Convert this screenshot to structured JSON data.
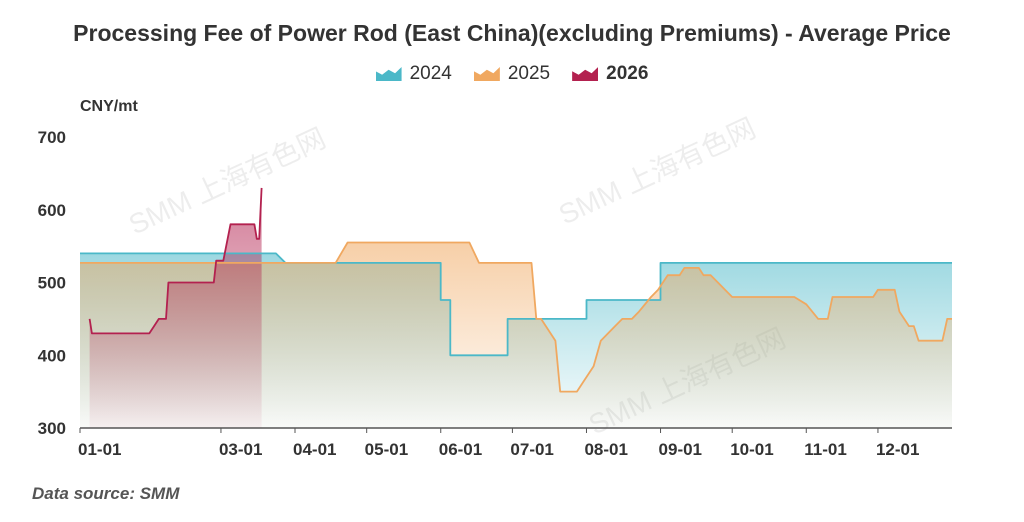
{
  "chart_data": {
    "type": "area",
    "title": "Processing Fee of Power Rod (East China)(excluding Premiums) - Average Price",
    "ylabel": "CNY/mt",
    "ylim": [
      300,
      700
    ],
    "yticks": [
      300,
      400,
      500,
      600,
      700
    ],
    "x_range_day": [
      1,
      366
    ],
    "xticks": [
      {
        "label": "01-01",
        "day": 1
      },
      {
        "label": "03-01",
        "day": 60
      },
      {
        "label": "04-01",
        "day": 91
      },
      {
        "label": "05-01",
        "day": 121
      },
      {
        "label": "06-01",
        "day": 152
      },
      {
        "label": "07-01",
        "day": 182
      },
      {
        "label": "08-01",
        "day": 213
      },
      {
        "label": "09-01",
        "day": 244
      },
      {
        "label": "10-01",
        "day": 274
      },
      {
        "label": "11-01",
        "day": 305
      },
      {
        "label": "12-01",
        "day": 335
      }
    ],
    "legend_position": "top-center",
    "series": [
      {
        "name": "2024",
        "color": "#4bb8c8",
        "points": [
          [
            1,
            540
          ],
          [
            83,
            540
          ],
          [
            87,
            527
          ],
          [
            152,
            527
          ],
          [
            152,
            476
          ],
          [
            156,
            476
          ],
          [
            156,
            400
          ],
          [
            180,
            400
          ],
          [
            180,
            450
          ],
          [
            213,
            450
          ],
          [
            213,
            476
          ],
          [
            244,
            476
          ],
          [
            244,
            527
          ],
          [
            366,
            527
          ]
        ]
      },
      {
        "name": "2025",
        "color": "#f0a860",
        "points": [
          [
            1,
            527
          ],
          [
            108,
            527
          ],
          [
            113,
            555
          ],
          [
            164,
            555
          ],
          [
            168,
            527
          ],
          [
            190,
            527
          ],
          [
            192,
            450
          ],
          [
            194,
            450
          ],
          [
            200,
            420
          ],
          [
            202,
            350
          ],
          [
            209,
            350
          ],
          [
            216,
            385
          ],
          [
            219,
            420
          ],
          [
            222,
            430
          ],
          [
            225,
            440
          ],
          [
            228,
            450
          ],
          [
            232,
            450
          ],
          [
            235,
            460
          ],
          [
            240,
            480
          ],
          [
            243,
            490
          ],
          [
            247,
            510
          ],
          [
            252,
            510
          ],
          [
            254,
            520
          ],
          [
            260,
            520
          ],
          [
            262,
            510
          ],
          [
            265,
            510
          ],
          [
            268,
            500
          ],
          [
            271,
            490
          ],
          [
            274,
            480
          ],
          [
            300,
            480
          ],
          [
            305,
            470
          ],
          [
            310,
            450
          ],
          [
            314,
            450
          ],
          [
            316,
            480
          ],
          [
            333,
            480
          ],
          [
            335,
            490
          ],
          [
            342,
            490
          ],
          [
            344,
            460
          ],
          [
            348,
            440
          ],
          [
            350,
            440
          ],
          [
            352,
            420
          ],
          [
            362,
            420
          ],
          [
            364,
            450
          ],
          [
            366,
            450
          ]
        ]
      },
      {
        "name": "2026",
        "color": "#b3214f",
        "points": [
          [
            5,
            450
          ],
          [
            6,
            430
          ],
          [
            30,
            430
          ],
          [
            32,
            440
          ],
          [
            34,
            450
          ],
          [
            37,
            450
          ],
          [
            38,
            500
          ],
          [
            57,
            500
          ],
          [
            58,
            530
          ],
          [
            61,
            530
          ],
          [
            64,
            580
          ],
          [
            74,
            580
          ],
          [
            75,
            560
          ],
          [
            76,
            560
          ],
          [
            77,
            630
          ]
        ]
      }
    ]
  },
  "source": "Data source:  SMM",
  "watermark": "SMM 上海有色网"
}
